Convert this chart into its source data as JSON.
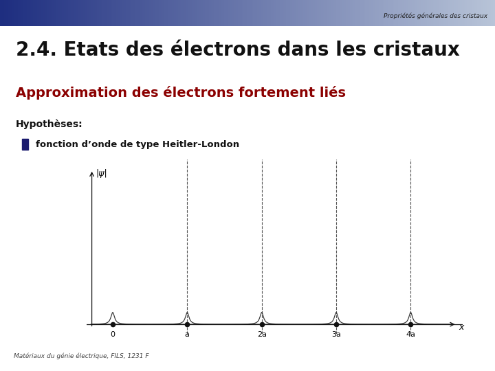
{
  "slide_title": "Propriétés générales des cristaux",
  "main_title": "2.4. Etats des électrons dans les cristaux",
  "subtitle": "Approximation des électrons fortement liés",
  "hypothesis_label": "Hypothèses:",
  "bullet_text": "fonction d’onde de type Heitler-London",
  "footer": "Matériaux du génie électrique, FILS, 1231 F",
  "psi_label": "|ψ|",
  "x_label": "x",
  "x_ticks": [
    "0",
    "a",
    "2a",
    "3a",
    "4a"
  ],
  "background_color": "#ffffff",
  "header_bg_start": "#1e2e80",
  "header_bg_end": "#b8c4d8",
  "subtitle_color": "#8b0000",
  "main_title_color": "#111111",
  "plot_line_color": "#333333",
  "dot_color": "#111111",
  "dotted_line_color": "#555555",
  "bullet_color": "#1a1a6e",
  "figsize": [
    7.2,
    5.4
  ],
  "dpi": 100
}
